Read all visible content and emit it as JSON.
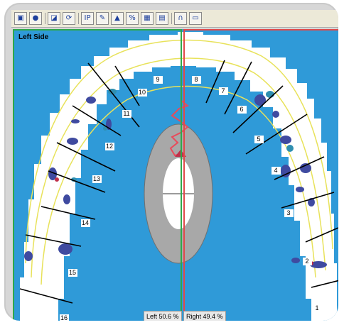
{
  "toolbar": {
    "buttons": [
      {
        "name": "open-icon",
        "glyph": "▣"
      },
      {
        "name": "record-icon",
        "glyph": "●"
      },
      {
        "name": "edit-icon",
        "glyph": "◪"
      },
      {
        "name": "scan-icon",
        "glyph": "⟳"
      },
      {
        "name": "ip-button",
        "glyph": "IP"
      },
      {
        "name": "trace-icon",
        "glyph": "✎"
      },
      {
        "name": "force-icon",
        "glyph": "▲"
      },
      {
        "name": "percent-icon",
        "glyph": "%"
      },
      {
        "name": "grid-icon",
        "glyph": "▦"
      },
      {
        "name": "graph-icon",
        "glyph": "▤"
      },
      {
        "name": "arch-icon",
        "glyph": "∩"
      },
      {
        "name": "save-icon",
        "glyph": "▭"
      }
    ]
  },
  "view": {
    "left_title": "Left Side",
    "left_percent": "Left 50.6 %",
    "right_percent": "Right 49.4 %",
    "colors": {
      "background_blue": "#2f9ad8",
      "arch_white": "#ffffff",
      "arch_outline": "#e8e25a",
      "contact_dark": "#3f4aa0",
      "contact_teal": "#2f8fb0",
      "contact_red": "#c0304a",
      "ring_gray": "#a8a8a8",
      "left_border": "#2fa84a",
      "right_border": "#e04a4a",
      "trajectory": "#e84a5a"
    }
  },
  "teeth_left": [
    "9",
    "10",
    "11",
    "12",
    "13",
    "14",
    "15",
    "16"
  ],
  "teeth_right": [
    "8",
    "7",
    "6",
    "5",
    "4",
    "3",
    "2",
    "1"
  ]
}
